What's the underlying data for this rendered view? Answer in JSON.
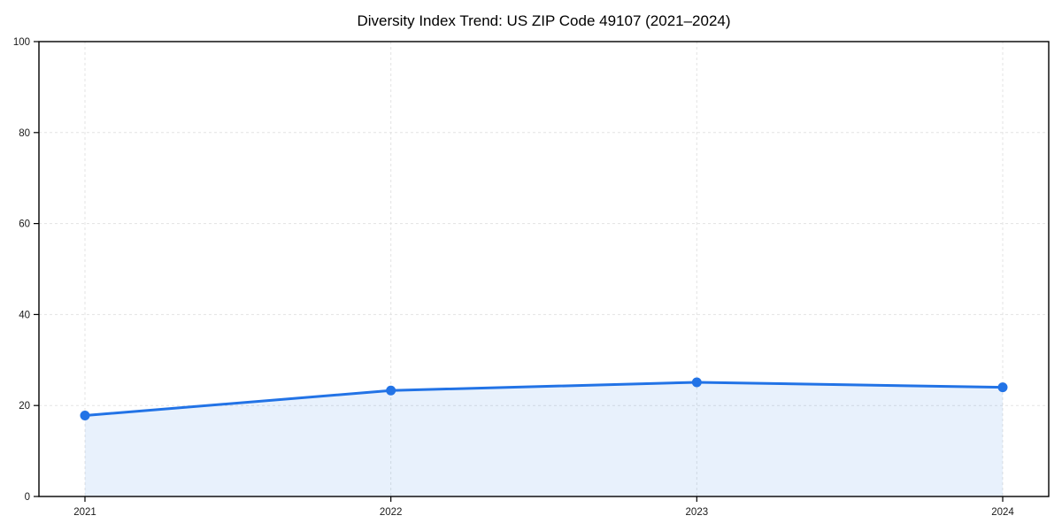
{
  "title": "Diversity Index Trend: US ZIP Code 49107 (2021–2024)",
  "chart_data": {
    "type": "line",
    "title": "Diversity Index Trend: US ZIP Code 49107 (2021–2024)",
    "x": [
      "2021",
      "2022",
      "2023",
      "2024"
    ],
    "series": [
      {
        "name": "Diversity Index",
        "values": [
          17.8,
          23.3,
          25.1,
          24.0
        ]
      }
    ],
    "xlabel": "",
    "ylabel": "",
    "ylim": [
      0,
      100
    ],
    "yticks": [
      0,
      20,
      40,
      60,
      80,
      100
    ],
    "grid": "dashed-both-axes",
    "legend_position": "none",
    "area_fill": true,
    "marker": "circle",
    "colors": {
      "line": "#2273e6",
      "marker": "#2273e6",
      "fill": "#2273e6",
      "fill_opacity": 0.1,
      "grid": "#e3e3e3",
      "axis": "#000000",
      "tick_label": "#1a1a1a",
      "background": "#ffffff"
    }
  }
}
